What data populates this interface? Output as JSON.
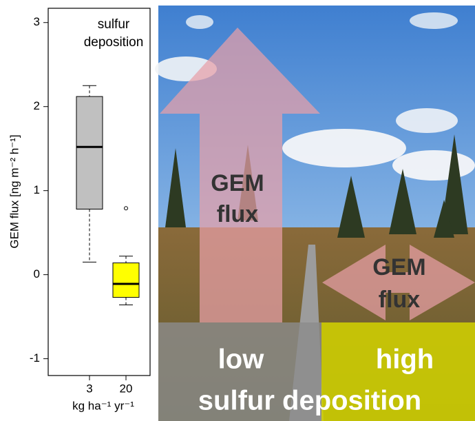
{
  "chart_data": {
    "type": "box",
    "y_label": "GEM flux [ng m⁻² h⁻¹]",
    "x_label": "kg ha⁻¹ yr⁻¹",
    "annotation": [
      "sulfur",
      "deposition"
    ],
    "categories": [
      "3",
      "20"
    ],
    "boxes": [
      {
        "whisker_high": 2.25,
        "q3": 2.12,
        "median": 1.52,
        "q1": 0.78,
        "whisker_low": 0.15,
        "outliers": [],
        "color": "#c0c0c0"
      },
      {
        "whisker_high": 0.22,
        "q3": 0.14,
        "median": -0.11,
        "q1": -0.27,
        "whisker_low": -0.36,
        "outliers": [
          0.79
        ],
        "color": "#ffff00"
      }
    ],
    "ylim": [
      -1.2,
      3.17
    ],
    "yticks": [
      -1,
      0,
      1,
      2,
      3
    ]
  },
  "illustration": {
    "up_arrow_label": [
      "GEM",
      "flux"
    ],
    "side_arrow_label": [
      "GEM",
      "flux"
    ],
    "low_label": "low",
    "high_label": "high",
    "bottom_label": "sulfur deposition"
  }
}
